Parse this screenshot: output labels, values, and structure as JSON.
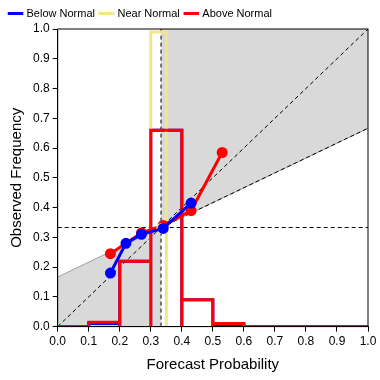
{
  "chart_data": {
    "type": "line",
    "x_label": "Forecast Probability",
    "y_label": "Observed Frequency",
    "xlim": [
      0,
      1
    ],
    "ylim": [
      0,
      1
    ],
    "xticks": [
      {
        "value": 0,
        "label": "0.0"
      },
      0.1,
      0.2,
      0.3,
      0.4,
      0.5,
      0.6,
      0.7,
      0.8,
      0.9,
      {
        "value": 1,
        "label": "1.0"
      }
    ],
    "yticks": [
      {
        "value": 0,
        "label": "0.0"
      },
      0.1,
      0.2,
      0.3,
      0.4,
      0.5,
      0.6,
      0.7,
      0.8,
      0.9,
      {
        "value": 1,
        "label": "1.0"
      }
    ],
    "grid": false,
    "legend": "upper left",
    "climatology": 0.333,
    "series": [
      {
        "name": "Below Normal",
        "color": "#0000ff",
        "marker": "circle",
        "line_style": "solid",
        "x": [
          0.17,
          0.22,
          0.27,
          0.34,
          0.43
        ],
        "values": [
          0.18,
          0.28,
          0.31,
          0.33,
          0.415
        ],
        "histogram": {
          "bins": [
            0,
            0.1,
            0.2,
            0.3,
            0.4,
            0.5,
            0.6,
            0.7,
            0.8,
            0.9,
            1
          ],
          "counts": [
            0,
            0.01,
            0.22,
            0.66,
            0.09,
            0.005,
            0,
            0,
            0,
            0
          ]
        }
      },
      {
        "name": "Near Normal",
        "color": "#f0e68c",
        "marker": "circle",
        "line_style": "solid",
        "x": [
          0.335
        ],
        "values": [
          0.33
        ],
        "histogram": {
          "bins": [
            0.3,
            0.35
          ],
          "counts": [
            0.99
          ]
        }
      },
      {
        "name": "Above Normal",
        "color": "#ff0000",
        "marker": "circle",
        "line_style": "solid",
        "x": [
          0.17,
          0.27,
          0.34,
          0.43,
          0.53
        ],
        "values": [
          0.245,
          0.315,
          0.34,
          0.39,
          0.585
        ],
        "histogram": {
          "bins": [
            0,
            0.1,
            0.2,
            0.3,
            0.4,
            0.5,
            0.6,
            0.7,
            0.8,
            0.9,
            1
          ],
          "counts": [
            0,
            0.015,
            0.22,
            0.66,
            0.09,
            0.01,
            0,
            0,
            0,
            0
          ]
        }
      }
    ]
  }
}
